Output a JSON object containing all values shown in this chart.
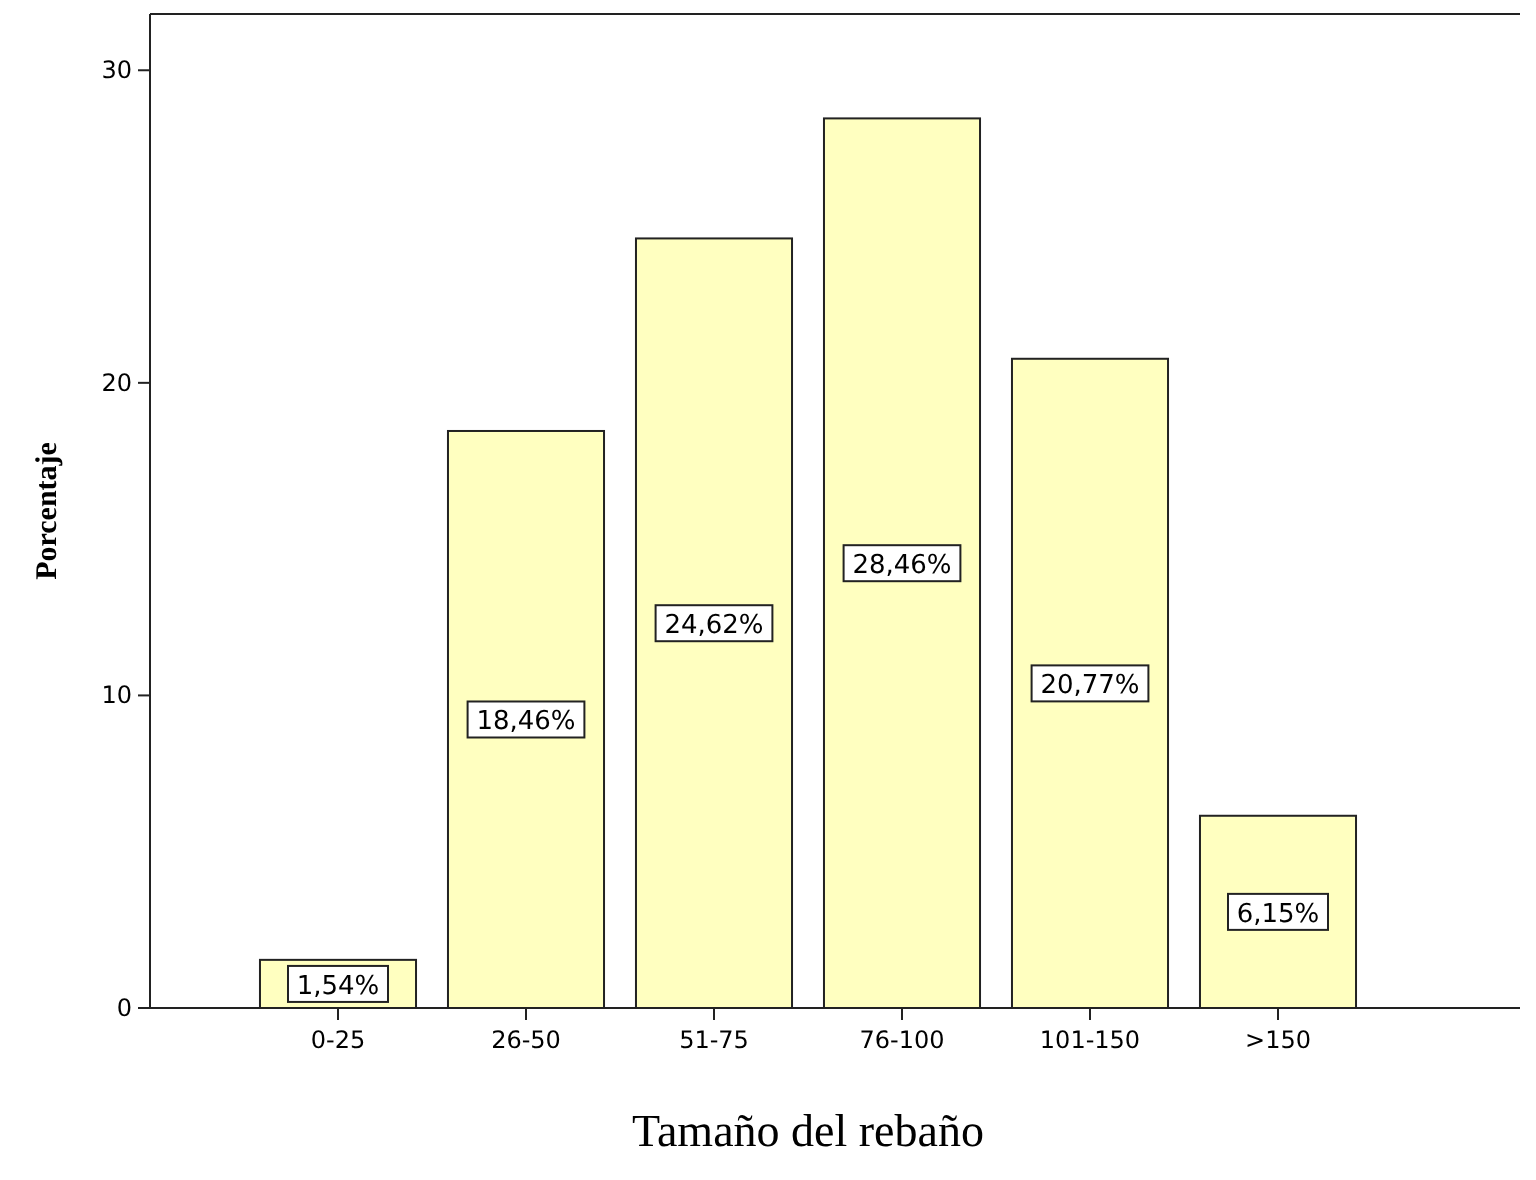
{
  "chart_data": {
    "type": "bar",
    "xlabel": "Tamaño del rebaño",
    "ylabel": "Porcentaje",
    "categories": [
      "0-25",
      "26-50",
      "51-75",
      "76-100",
      "101-150",
      ">150"
    ],
    "values": [
      1.54,
      18.46,
      24.62,
      28.46,
      20.77,
      6.15
    ],
    "value_labels": [
      "1,54%",
      "18,46%",
      "24,62%",
      "28,46%",
      "20,77%",
      "6,15%"
    ],
    "color": "#ffffc0",
    "ylim": [
      0,
      31.8
    ],
    "yticks": [
      0,
      10,
      20,
      30
    ],
    "grid": false
  }
}
